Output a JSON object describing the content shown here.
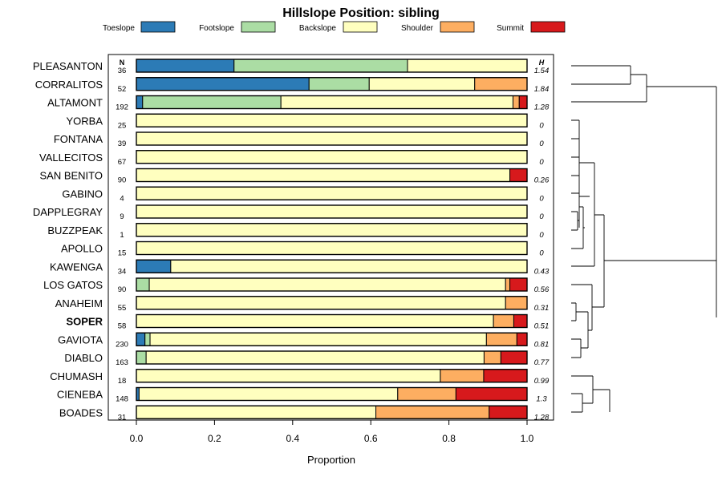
{
  "chart_data": {
    "type": "bar",
    "subtype": "stacked-horizontal-proportion",
    "title": "Hillslope Position: sibling",
    "xlabel": "Proportion",
    "xlim": [
      0,
      1
    ],
    "x_ticks": [
      "0.0",
      "0.2",
      "0.4",
      "0.6",
      "0.8",
      "1.0"
    ],
    "n_header": "N",
    "h_header": "H",
    "highlighted": "SOPER",
    "legend": [
      {
        "name": "Toeslope",
        "color": "#2c7bb6"
      },
      {
        "name": "Footslope",
        "color": "#abdda4"
      },
      {
        "name": "Backslope",
        "color": "#ffffbf"
      },
      {
        "name": "Shoulder",
        "color": "#fdae61"
      },
      {
        "name": "Summit",
        "color": "#d7191c"
      }
    ],
    "rows": [
      {
        "name": "PLEASANTON",
        "n": "36",
        "h": "1.54",
        "values": [
          0.25,
          0.444,
          0.306,
          0,
          0
        ]
      },
      {
        "name": "CORRALITOS",
        "n": "52",
        "h": "1.84",
        "values": [
          0.442,
          0.154,
          0.27,
          0.134,
          0
        ]
      },
      {
        "name": "ALTAMONT",
        "n": "192",
        "h": "1.28",
        "values": [
          0.016,
          0.354,
          0.594,
          0.016,
          0.02
        ]
      },
      {
        "name": "YORBA",
        "n": "25",
        "h": "0",
        "values": [
          0,
          0,
          1,
          0,
          0
        ]
      },
      {
        "name": "FONTANA",
        "n": "39",
        "h": "0",
        "values": [
          0,
          0,
          1,
          0,
          0
        ]
      },
      {
        "name": "VALLECITOS",
        "n": "67",
        "h": "0",
        "values": [
          0,
          0,
          1,
          0,
          0
        ]
      },
      {
        "name": "SAN BENITO",
        "n": "90",
        "h": "0.26",
        "values": [
          0,
          0,
          0.956,
          0,
          0.044
        ]
      },
      {
        "name": "GABINO",
        "n": "4",
        "h": "0",
        "values": [
          0,
          0,
          1,
          0,
          0
        ]
      },
      {
        "name": "DAPPLEGRAY",
        "n": "9",
        "h": "0",
        "values": [
          0,
          0,
          1,
          0,
          0
        ]
      },
      {
        "name": "BUZZPEAK",
        "n": "1",
        "h": "0",
        "values": [
          0,
          0,
          1,
          0,
          0
        ]
      },
      {
        "name": "APOLLO",
        "n": "15",
        "h": "0",
        "values": [
          0,
          0,
          1,
          0,
          0
        ]
      },
      {
        "name": "KAWENGA",
        "n": "34",
        "h": "0.43",
        "values": [
          0.088,
          0,
          0.912,
          0,
          0
        ]
      },
      {
        "name": "LOS GATOS",
        "n": "90",
        "h": "0.56",
        "values": [
          0,
          0.033,
          0.912,
          0.011,
          0.044
        ]
      },
      {
        "name": "ANAHEIM",
        "n": "55",
        "h": "0.31",
        "values": [
          0,
          0,
          0.945,
          0.055,
          0
        ]
      },
      {
        "name": "SOPER",
        "n": "58",
        "h": "0.51",
        "values": [
          0,
          0,
          0.914,
          0.052,
          0.034
        ]
      },
      {
        "name": "GAVIOTA",
        "n": "230",
        "h": "0.81",
        "values": [
          0.022,
          0.013,
          0.861,
          0.078,
          0.026
        ]
      },
      {
        "name": "DIABLO",
        "n": "163",
        "h": "0.77",
        "values": [
          0,
          0.025,
          0.865,
          0.043,
          0.067
        ]
      },
      {
        "name": "CHUMASH",
        "n": "18",
        "h": "0.99",
        "values": [
          0,
          0,
          0.778,
          0.111,
          0.111
        ]
      },
      {
        "name": "CIENEBA",
        "n": "148",
        "h": "1.3",
        "values": [
          0.007,
          0,
          0.662,
          0.149,
          0.182
        ]
      },
      {
        "name": "BOADES",
        "n": "31",
        "h": "1.28",
        "values": [
          0,
          0,
          0.613,
          0.29,
          0.097
        ]
      }
    ]
  }
}
